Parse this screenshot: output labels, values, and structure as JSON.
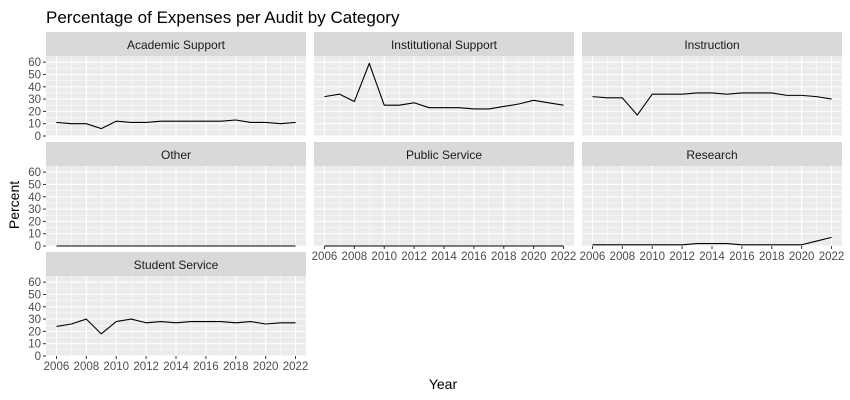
{
  "chart_data": {
    "type": "line",
    "title": "Percentage of Expenses per Audit by Category",
    "xlabel": "Year",
    "ylabel": "Percent",
    "ylim": [
      0,
      65
    ],
    "y_ticks": [
      0,
      10,
      20,
      30,
      40,
      50,
      60
    ],
    "xlim": [
      2005.3,
      2022.7
    ],
    "x_ticks": [
      2006,
      2008,
      2010,
      2012,
      2014,
      2016,
      2018,
      2020,
      2022
    ],
    "x": [
      2006,
      2007,
      2008,
      2009,
      2010,
      2011,
      2012,
      2013,
      2014,
      2015,
      2016,
      2017,
      2018,
      2019,
      2020,
      2021,
      2022
    ],
    "grid": true,
    "line_color": "#000000",
    "panel_background": "#ebebeb",
    "strip_background": "#d9d9d9",
    "grid_color": "#ffffff",
    "facets": [
      {
        "name": "Academic Support",
        "values": [
          11,
          10,
          10,
          6,
          12,
          11,
          11,
          12,
          12,
          12,
          12,
          12,
          13,
          11,
          11,
          10,
          11
        ]
      },
      {
        "name": "Institutional Support",
        "values": [
          32,
          34,
          28,
          59,
          25,
          25,
          27,
          23,
          23,
          23,
          22,
          22,
          24,
          26,
          29,
          27,
          25
        ]
      },
      {
        "name": "Instruction",
        "values": [
          32,
          31,
          31,
          17,
          34,
          34,
          34,
          35,
          35,
          34,
          35,
          35,
          35,
          33,
          33,
          32,
          30
        ]
      },
      {
        "name": "Other",
        "values": [
          0,
          0,
          0,
          0,
          0,
          0,
          0,
          0,
          0,
          0,
          0,
          0,
          0,
          0,
          0,
          0,
          0
        ]
      },
      {
        "name": "Public Service",
        "values": [
          0,
          0,
          0,
          0,
          0,
          0,
          0,
          0,
          0,
          0,
          0,
          0,
          0,
          0,
          0,
          0,
          0
        ]
      },
      {
        "name": "Research",
        "values": [
          1,
          1,
          1,
          1,
          1,
          1,
          1,
          2,
          2,
          2,
          1,
          1,
          1,
          1,
          1,
          4,
          7
        ]
      },
      {
        "name": "Student Service",
        "values": [
          24,
          26,
          30,
          18,
          28,
          30,
          27,
          28,
          27,
          28,
          28,
          28,
          27,
          28,
          26,
          27,
          27
        ]
      }
    ]
  }
}
